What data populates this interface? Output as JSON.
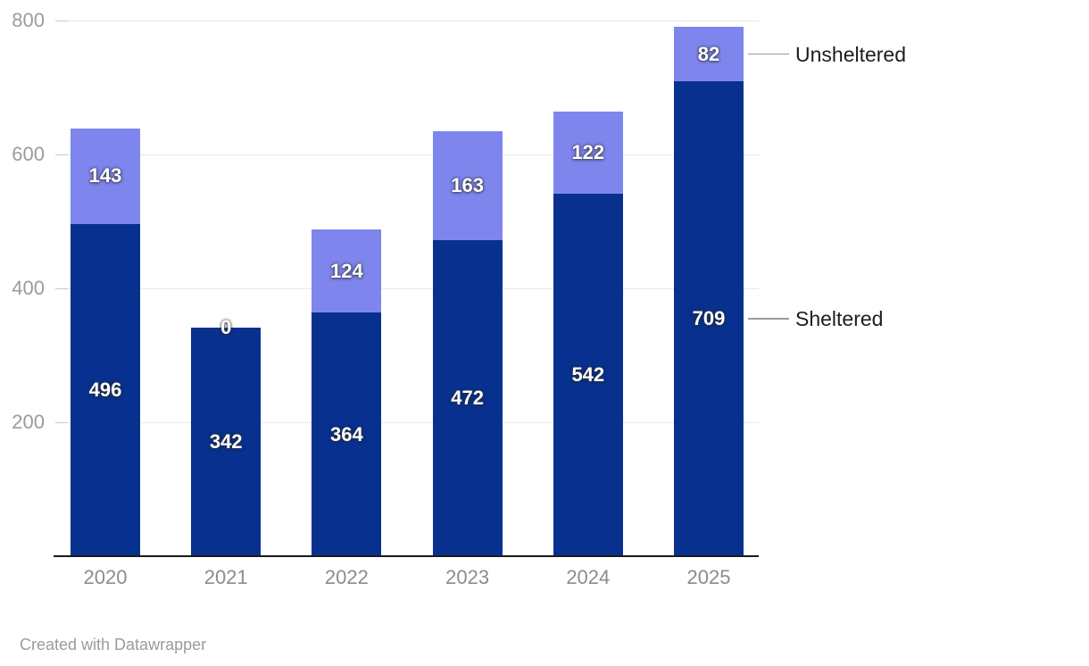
{
  "chart_data": {
    "type": "bar",
    "stacked": true,
    "title": "",
    "categories": [
      "2020",
      "2021",
      "2022",
      "2023",
      "2024",
      "2025"
    ],
    "series": [
      {
        "name": "Sheltered",
        "color": "#08318f",
        "values": [
          496,
          342,
          364,
          472,
          542,
          709
        ]
      },
      {
        "name": "Unsheltered",
        "color": "#7e86ee",
        "values": [
          143,
          0,
          124,
          163,
          122,
          82
        ]
      }
    ],
    "ylim": [
      0,
      800
    ],
    "yticks": [
      200,
      400,
      600,
      800
    ],
    "grid": true,
    "value_labels": true,
    "legend_position": "right-annotations"
  },
  "annotations": {
    "series_labels": [
      "Unsheltered",
      "Sheltered"
    ]
  },
  "footer": {
    "attribution": "Created with Datawrapper"
  },
  "colors": {
    "sheltered": "#08318f",
    "unsheltered": "#7e86ee",
    "gridline": "#e9e9e9",
    "tick_mark": "#c9c9c9",
    "axis_line": "#1a1a1a",
    "y_tick_label": "#9b9b9b",
    "category_label": "#8c8c8c",
    "series_label_text": "#1d1d1d",
    "connector_line": "#9b9b9b",
    "value_label": "#ffffff",
    "attribution": "#9b9b9b",
    "background": "#ffffff"
  }
}
